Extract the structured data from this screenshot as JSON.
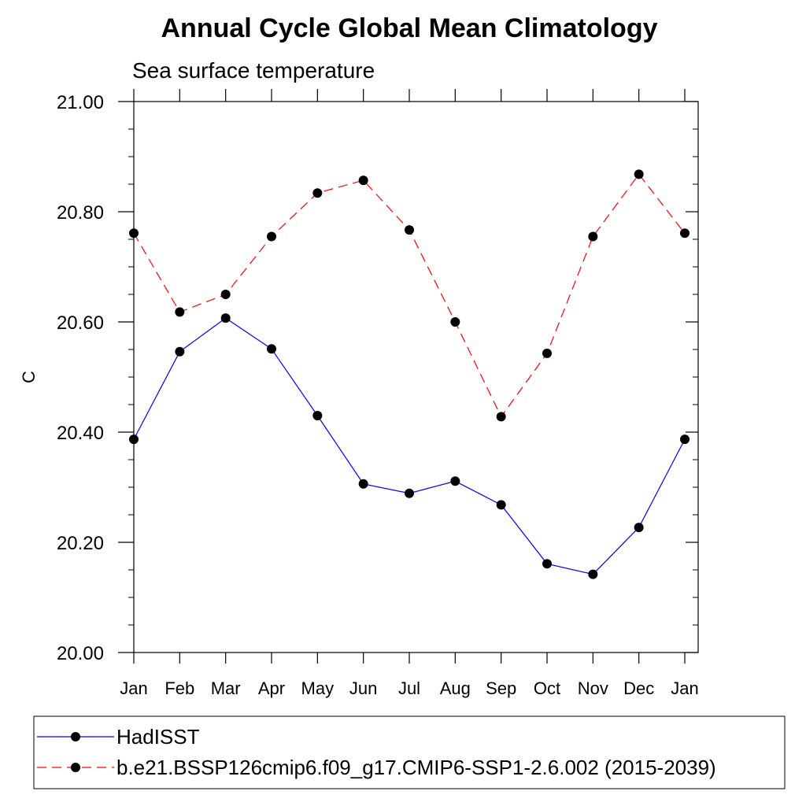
{
  "chart_data": {
    "type": "line",
    "title": "Annual Cycle Global Mean Climatology",
    "subtitle": "Sea surface temperature",
    "xlabel": "",
    "ylabel": "C",
    "categories": [
      "Jan",
      "Feb",
      "Mar",
      "Apr",
      "May",
      "Jun",
      "Jul",
      "Aug",
      "Sep",
      "Oct",
      "Nov",
      "Dec",
      "Jan"
    ],
    "ylim": [
      20.0,
      21.0
    ],
    "yticks": [
      "20.00",
      "20.20",
      "20.40",
      "20.60",
      "20.80",
      "21.00"
    ],
    "ytick_values": [
      20.0,
      20.2,
      20.4,
      20.6,
      20.8,
      21.0
    ],
    "grid": false,
    "legend_position": "bottom",
    "series": [
      {
        "name": "HadISST",
        "color": "#0000ff",
        "dash": "solid",
        "marker": "circle",
        "values": [
          20.387,
          20.546,
          20.607,
          20.551,
          20.43,
          20.306,
          20.289,
          20.311,
          20.268,
          20.161,
          20.142,
          20.227,
          20.387
        ]
      },
      {
        "name": "b.e21.BSSP126cmip6.f09_g17.CMIP6-SSP1-2.6.002 (2015-2039)",
        "color": "#ff0000",
        "dash": "dashed",
        "marker": "circle",
        "values": [
          20.761,
          20.618,
          20.65,
          20.755,
          20.834,
          20.857,
          20.767,
          20.6,
          20.428,
          20.543,
          20.755,
          20.868,
          20.761
        ]
      }
    ]
  }
}
